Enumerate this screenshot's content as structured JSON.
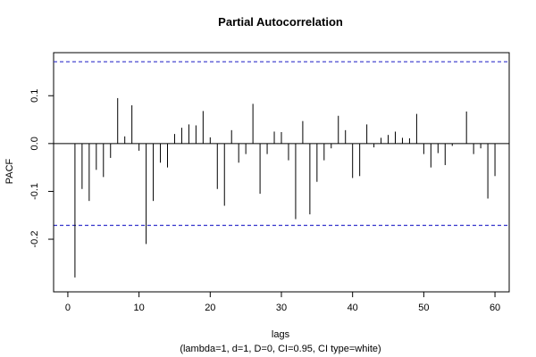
{
  "chart_data": {
    "type": "bar",
    "title": "Partial Autocorrelation",
    "xlabel": "lags",
    "subtitle": "(lambda=1, d=1, D=0, CI=0.95, CI type=white)",
    "ylabel": "PACF",
    "xlim": [
      -2,
      62
    ],
    "ylim": [
      -0.31,
      0.19
    ],
    "xticks": [
      0,
      10,
      20,
      30,
      40,
      50,
      60
    ],
    "yticks": [
      -0.2,
      -0.1,
      0.0,
      0.1
    ],
    "ci_upper": 0.171,
    "ci_lower": -0.171,
    "ci_color": "#3333cc",
    "lags": [
      1,
      2,
      3,
      4,
      5,
      6,
      7,
      8,
      9,
      10,
      11,
      12,
      13,
      14,
      15,
      16,
      17,
      18,
      19,
      20,
      21,
      22,
      23,
      24,
      25,
      26,
      27,
      28,
      29,
      30,
      31,
      32,
      33,
      34,
      35,
      36,
      37,
      38,
      39,
      40,
      41,
      42,
      43,
      44,
      45,
      46,
      47,
      48,
      49,
      50,
      51,
      52,
      53,
      54,
      55,
      56,
      57,
      58,
      59,
      60
    ],
    "values": [
      -0.28,
      -0.095,
      -0.12,
      -0.055,
      -0.07,
      -0.03,
      0.095,
      0.015,
      0.08,
      -0.015,
      -0.21,
      -0.12,
      -0.04,
      -0.05,
      0.02,
      0.033,
      0.04,
      0.038,
      0.068,
      0.013,
      -0.095,
      -0.13,
      0.028,
      -0.04,
      -0.022,
      0.083,
      -0.105,
      -0.022,
      0.025,
      0.024,
      -0.035,
      -0.158,
      0.047,
      -0.148,
      -0.08,
      -0.035,
      -0.01,
      0.058,
      0.028,
      -0.072,
      -0.068,
      0.04,
      -0.008,
      0.012,
      0.018,
      0.025,
      0.012,
      0.011,
      0.062,
      -0.022,
      -0.05,
      -0.02,
      -0.045,
      -0.005,
      0.0,
      0.067,
      -0.022,
      -0.01,
      -0.115,
      -0.068
    ]
  }
}
